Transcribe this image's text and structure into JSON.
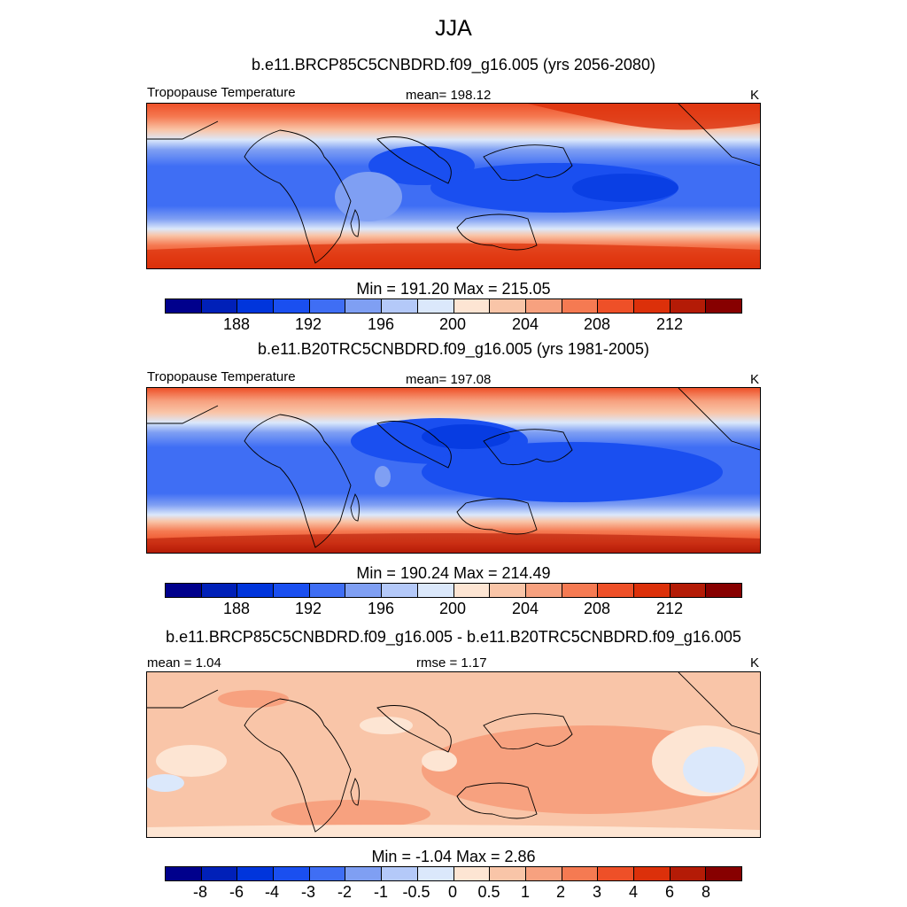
{
  "season": "JJA",
  "panels": [
    {
      "case_title": "b.e11.BRCP85C5CNBDRD.f09_g16.005 (yrs 2056-2080)",
      "variable": "Tropopause Temperature",
      "mean_label": "mean= 198.12",
      "units": "K",
      "colorbar_title": "Min = 191.20 Max = 215.05",
      "colorbar_ticks": [
        "188",
        "192",
        "196",
        "200",
        "204",
        "208",
        "212"
      ]
    },
    {
      "case_title": "b.e11.B20TRC5CNBDRD.f09_g16.005 (yrs 1981-2005)",
      "variable": "Tropopause Temperature",
      "mean_label": "mean= 197.08",
      "units": "K",
      "colorbar_title": "Min = 190.24 Max = 214.49",
      "colorbar_ticks": [
        "188",
        "192",
        "196",
        "200",
        "204",
        "208",
        "212"
      ]
    },
    {
      "case_title": "b.e11.BRCP85C5CNBDRD.f09_g16.005 - b.e11.B20TRC5CNBDRD.f09_g16.005",
      "mean_label": "mean =   1.04",
      "rmse_label": "rmse =   1.17",
      "units": "K",
      "colorbar_title": "Min =  -1.04 Max =   2.86",
      "colorbar_ticks": [
        "-8",
        "-6",
        "-4",
        "-3",
        "-2",
        "-1",
        "-0.5",
        "0",
        "0.5",
        "1",
        "2",
        "3",
        "4",
        "6",
        "8"
      ]
    }
  ],
  "colors": {
    "palette": [
      "#00008c",
      "#0020b8",
      "#0035dc",
      "#1a4ff0",
      "#3f6ef4",
      "#7f9ff3",
      "#b4c9f9",
      "#dbe8fb",
      "#fde5d3",
      "#f9c5a8",
      "#f7a17f",
      "#f57a52",
      "#ee5028",
      "#dc300a",
      "#b41b06",
      "#870000"
    ],
    "land_outline": "#000000"
  }
}
